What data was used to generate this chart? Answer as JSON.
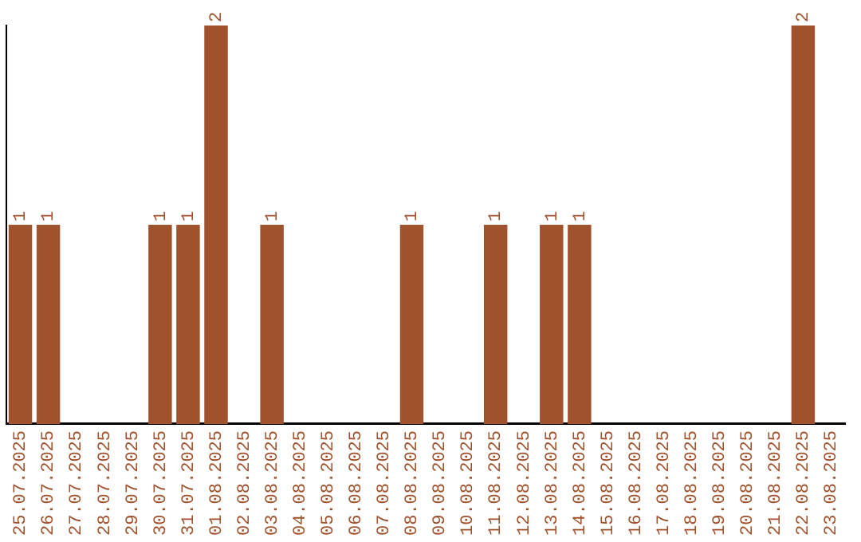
{
  "chart_data": {
    "type": "bar",
    "categories": [
      "25.07.2025",
      "26.07.2025",
      "27.07.2025",
      "28.07.2025",
      "29.07.2025",
      "30.07.2025",
      "31.07.2025",
      "01.08.2025",
      "02.08.2025",
      "03.08.2025",
      "04.08.2025",
      "05.08.2025",
      "06.08.2025",
      "07.08.2025",
      "08.08.2025",
      "09.08.2025",
      "10.08.2025",
      "11.08.2025",
      "12.08.2025",
      "13.08.2025",
      "14.08.2025",
      "15.08.2025",
      "16.08.2025",
      "17.08.2025",
      "18.08.2025",
      "19.08.2025",
      "20.08.2025",
      "21.08.2025",
      "22.08.2025",
      "23.08.2025"
    ],
    "values": [
      1,
      1,
      0,
      0,
      0,
      1,
      1,
      2,
      0,
      1,
      0,
      0,
      0,
      0,
      1,
      0,
      0,
      1,
      0,
      1,
      1,
      0,
      0,
      0,
      0,
      0,
      0,
      0,
      2,
      0
    ],
    "value_labels": [
      "1",
      "1",
      null,
      null,
      null,
      "1",
      "1",
      "2",
      null,
      "1",
      null,
      null,
      null,
      null,
      "1",
      null,
      null,
      "1",
      null,
      "1",
      "1",
      null,
      null,
      null,
      null,
      null,
      null,
      null,
      "2",
      null
    ],
    "color": "#a0522d",
    "tick_labels": "x",
    "grid": false,
    "legend": false
  }
}
